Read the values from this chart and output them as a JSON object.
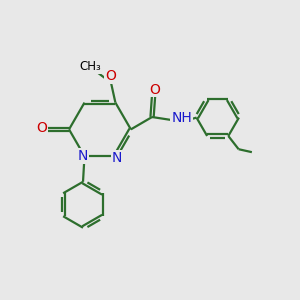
{
  "bg_color": "#e8e8e8",
  "bond_color": "#2d6e2d",
  "n_color": "#1a1acc",
  "o_color": "#cc0000",
  "black": "#000000",
  "line_width": 1.6,
  "dbo": 0.055,
  "xlim": [
    0,
    10
  ],
  "ylim": [
    0,
    10
  ]
}
